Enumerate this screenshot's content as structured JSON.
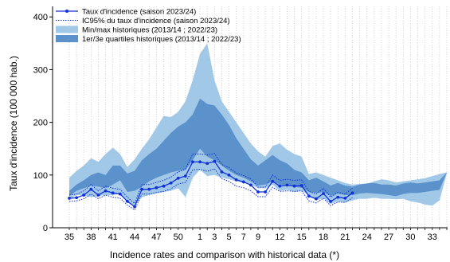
{
  "chart_data": {
    "type": "area",
    "xlabel": "Incidence rates and comparison with historical data (*)",
    "ylabel": "Taux d'incidence (100 000 hab.)",
    "ylim": [
      0,
      420
    ],
    "y_ticks": [
      0,
      100,
      200,
      300,
      400
    ],
    "weeks": [
      35,
      36,
      37,
      38,
      39,
      40,
      41,
      42,
      43,
      44,
      45,
      46,
      47,
      48,
      49,
      50,
      51,
      52,
      1,
      2,
      3,
      4,
      5,
      6,
      7,
      8,
      9,
      10,
      11,
      12,
      13,
      14,
      15,
      16,
      17,
      18,
      19,
      20,
      21,
      22,
      23,
      24,
      25,
      26,
      27,
      28,
      29,
      30,
      31,
      32,
      33,
      34,
      35
    ],
    "tick_labels": [
      "35",
      "38",
      "41",
      "44",
      "47",
      "50",
      "1",
      "3",
      "5",
      "7",
      "9",
      "12",
      "15",
      "18",
      "21",
      "24",
      "27",
      "30",
      "33"
    ],
    "tick_positions": [
      0,
      3,
      6,
      9,
      12,
      15,
      18,
      20,
      22,
      24,
      26,
      29,
      32,
      35,
      38,
      41,
      44,
      47,
      50
    ],
    "grid": "vertical-dotted",
    "legend_position": "top-left",
    "colors": {
      "current": "#1030d8",
      "minmax": "#a2c8e8",
      "quartiles": "#5b92cc"
    },
    "legend": [
      {
        "key": "current",
        "label": "Taux d'incidence (saison 2023/24)"
      },
      {
        "key": "ci",
        "label": "IC95% du taux d'incidence (saison 2023/24)"
      },
      {
        "key": "minmax",
        "label": "Min/max historiques (2013/14 ; 2022/23)"
      },
      {
        "key": "quartiles",
        "label": "1er/3e quartiles historiques (2013/14 ; 2022/23)"
      }
    ],
    "series": [
      {
        "name": "Taux d'incidence (saison 2023/24)",
        "values": [
          56,
          57,
          62,
          73,
          62,
          70,
          66,
          64,
          50,
          40,
          73,
          73,
          76,
          79,
          85,
          94,
          98,
          125,
          125,
          122,
          126,
          106,
          100,
          91,
          87,
          81,
          68,
          68,
          88,
          79,
          81,
          79,
          80,
          60,
          55,
          65,
          50,
          58,
          56,
          66
        ]
      },
      {
        "name": "IC95% du taux d'incidence (saison 2023/24) - haut",
        "values": [
          62,
          64,
          70,
          82,
          70,
          79,
          75,
          73,
          58,
          46,
          82,
          82,
          86,
          90,
          96,
          106,
          111,
          140,
          140,
          138,
          141,
          120,
          114,
          104,
          99,
          93,
          77,
          77,
          100,
          90,
          92,
          90,
          91,
          69,
          64,
          75,
          58,
          67,
          64,
          75
        ]
      },
      {
        "name": "IC95% du taux d'incidence (saison 2023/24) - bas",
        "values": [
          50,
          51,
          55,
          64,
          55,
          62,
          58,
          56,
          43,
          34,
          64,
          64,
          67,
          69,
          74,
          83,
          86,
          110,
          111,
          107,
          112,
          93,
          88,
          79,
          76,
          70,
          59,
          59,
          77,
          69,
          70,
          69,
          70,
          51,
          47,
          56,
          42,
          49,
          48,
          57
        ]
      },
      {
        "name": "Min/max historiques - max",
        "values": [
          95,
          108,
          118,
          132,
          125,
          140,
          152,
          140,
          115,
          130,
          150,
          168,
          190,
          212,
          210,
          220,
          240,
          280,
          330,
          350,
          280,
          240,
          220,
          200,
          180,
          160,
          145,
          135,
          155,
          160,
          148,
          140,
          135,
          102,
          105,
          100,
          95,
          90,
          85,
          82,
          83,
          84,
          88,
          92,
          90,
          86,
          88,
          90,
          92,
          94,
          98,
          102,
          105
        ]
      },
      {
        "name": "Min/max historiques - min",
        "values": [
          55,
          62,
          62,
          58,
          60,
          62,
          62,
          65,
          50,
          42,
          58,
          62,
          65,
          68,
          70,
          75,
          58,
          95,
          110,
          98,
          100,
          95,
          92,
          88,
          85,
          82,
          75,
          75,
          82,
          70,
          72,
          68,
          70,
          62,
          52,
          56,
          45,
          50,
          48,
          52,
          55,
          55,
          57,
          55,
          55,
          54,
          55,
          50,
          48,
          44,
          42,
          52,
          103
        ]
      },
      {
        "name": "1er/3e quartiles historiques - haut",
        "values": [
          70,
          82,
          90,
          100,
          105,
          100,
          118,
          118,
          103,
          108,
          128,
          140,
          150,
          165,
          180,
          192,
          200,
          215,
          245,
          235,
          232,
          215,
          195,
          170,
          150,
          130,
          118,
          128,
          138,
          128,
          122,
          110,
          105,
          90,
          95,
          88,
          80,
          85,
          80,
          78,
          82,
          84,
          85,
          82,
          82,
          80,
          84,
          86,
          84,
          86,
          88,
          90,
          105
        ]
      },
      {
        "name": "1er/3e quartiles historiques - bas",
        "values": [
          60,
          70,
          75,
          80,
          78,
          75,
          82,
          90,
          68,
          70,
          78,
          88,
          95,
          100,
          105,
          108,
          110,
          128,
          150,
          135,
          128,
          118,
          108,
          100,
          95,
          88,
          80,
          82,
          88,
          82,
          80,
          78,
          76,
          68,
          66,
          68,
          60,
          65,
          62,
          62,
          65,
          66,
          65,
          64,
          62,
          60,
          64,
          66,
          66,
          68,
          70,
          72,
          105
        ]
      }
    ]
  }
}
